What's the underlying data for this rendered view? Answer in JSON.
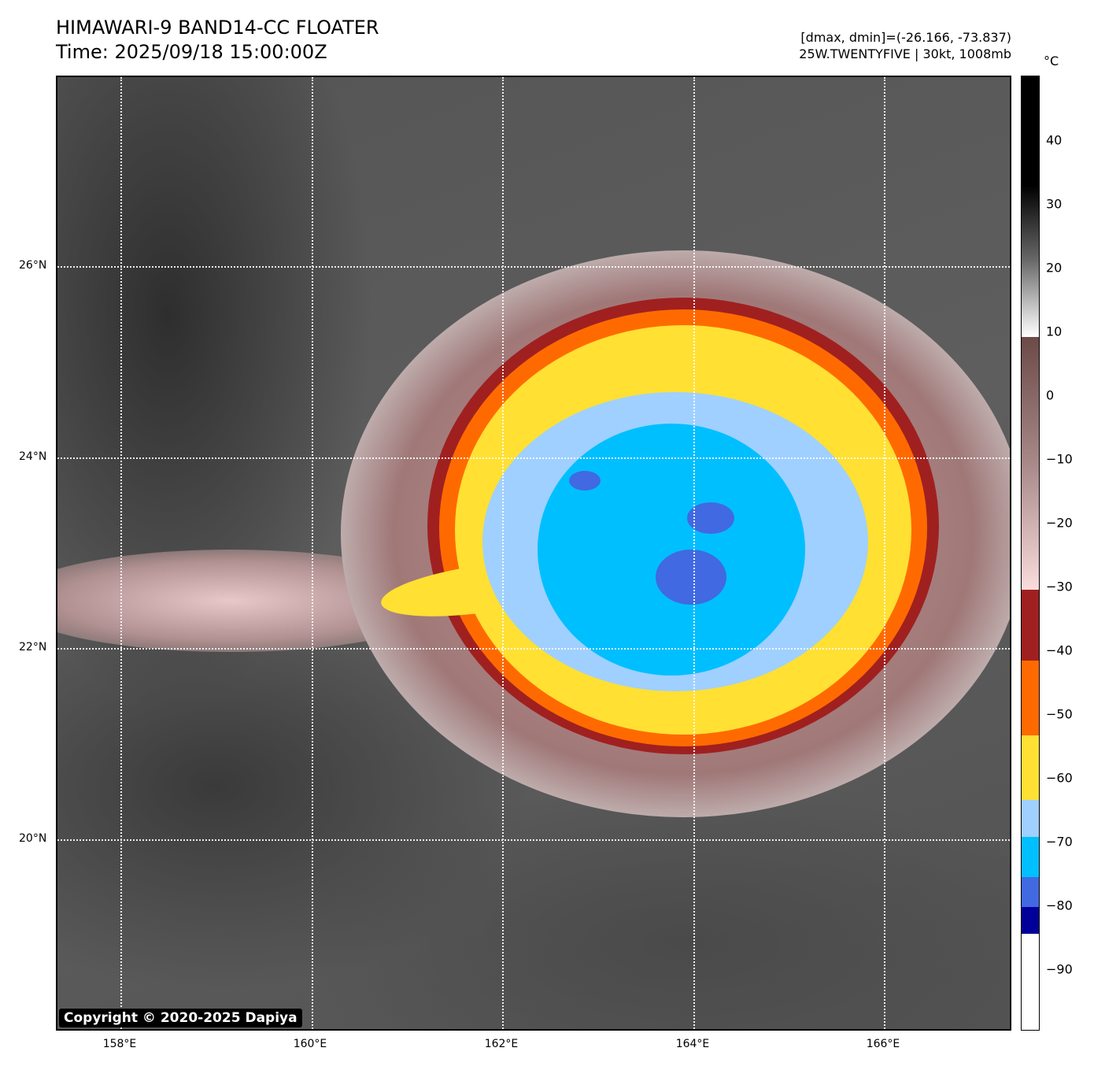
{
  "header": {
    "title": "HIMAWARI-9 BAND14-CC FLOATER",
    "time": "Time: 2025/09/18 15:00:00Z",
    "dminmax": "[dmax, dmin]=(-26.166, -73.837)",
    "storm": "25W.TWENTYFIVE | 30kt, 1008mb"
  },
  "map": {
    "lat_labels": [
      "26°N",
      "24°N",
      "22°N",
      "20°N"
    ],
    "lon_labels": [
      "158°E",
      "160°E",
      "162°E",
      "164°E",
      "166°E"
    ],
    "copyright": "Copyright © 2020-2025 Dapiya"
  },
  "colorbar": {
    "unit": "°C",
    "range": [
      -100,
      50
    ],
    "ticks": [
      "40",
      "30",
      "20",
      "10",
      "0",
      "−10",
      "−20",
      "−30",
      "−40",
      "−50",
      "−60",
      "−70",
      "−80",
      "−90"
    ],
    "colors": {
      "navy": "#000099",
      "blue": "#4169e1",
      "cyan": "#00bfff",
      "lightblue": "#a0d0ff",
      "yellow": "#ffe033",
      "orange": "#ff6a00",
      "red": "#a02020",
      "brown_top": "#6b4a48",
      "pink": "#fadcdc"
    }
  }
}
